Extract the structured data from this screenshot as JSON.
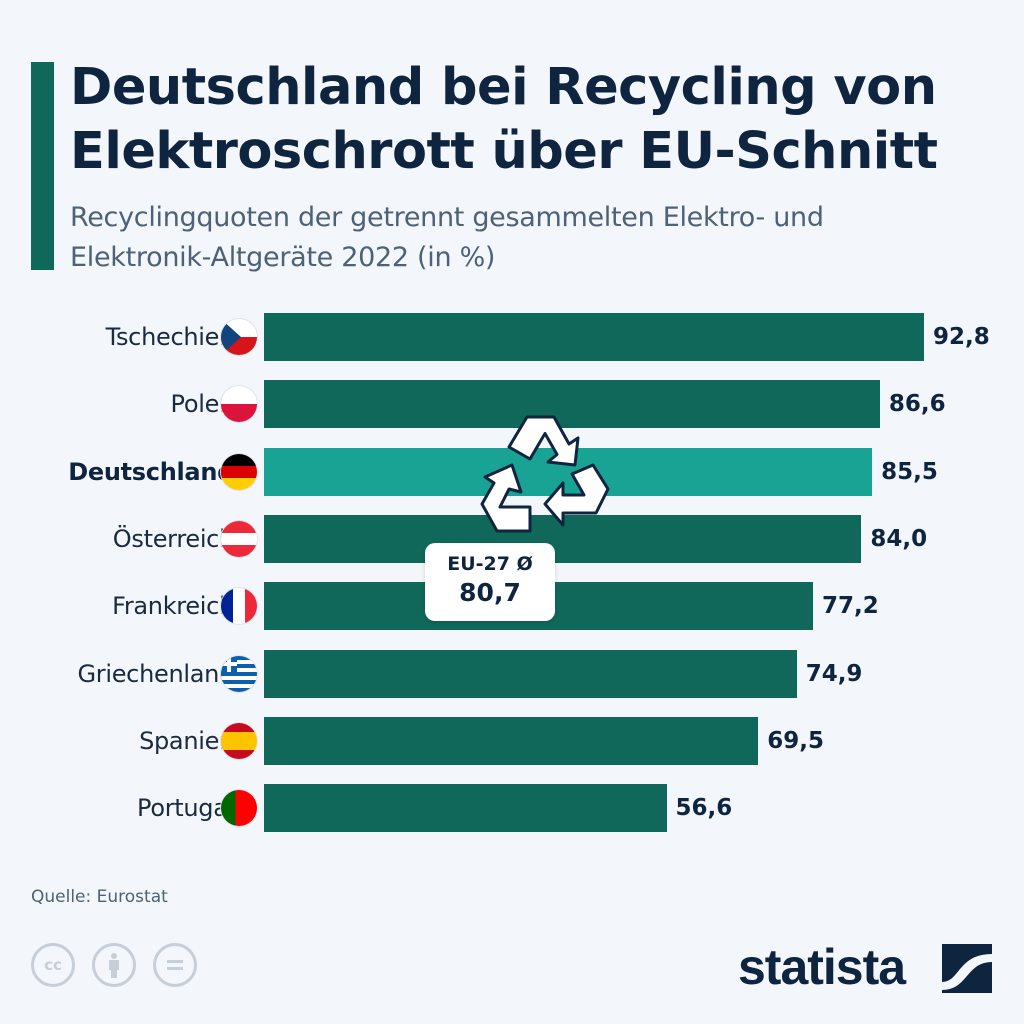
{
  "header": {
    "title": "Deutschland bei Recycling von Elektroschrott über EU-Schnitt",
    "subtitle": "Recyclingquoten der getrennt gesammelten Elektro- und Elektronik-Altgeräte 2022 (in %)"
  },
  "colors": {
    "bar": "#10685a",
    "highlight_bar": "#19a394",
    "text": "#0f243f",
    "background": "#f3f6fa"
  },
  "chart_data": {
    "type": "bar",
    "orientation": "horizontal",
    "title": "Deutschland bei Recycling von Elektroschrott über EU-Schnitt",
    "subtitle": "Recyclingquoten der getrennt gesammelten Elektro- und Elektronik-Altgeräte 2022 (in %)",
    "xlabel": "",
    "ylabel": "",
    "xlim": [
      0,
      92.8
    ],
    "grid": false,
    "categories": [
      "Tschechien",
      "Polen",
      "Deutschland",
      "Österreich",
      "Frankreich",
      "Griechenland",
      "Spanien",
      "Portugal"
    ],
    "values": [
      92.8,
      86.6,
      85.5,
      84.0,
      77.2,
      74.9,
      69.5,
      56.6
    ],
    "value_labels": [
      "92,8",
      "86,6",
      "85,5",
      "84,0",
      "77,2",
      "74,9",
      "69,5",
      "56,6"
    ],
    "flags": [
      "flag-czechia-icon",
      "flag-poland-icon",
      "flag-germany-icon",
      "flag-austria-icon",
      "flag-france-icon",
      "flag-greece-icon",
      "flag-spain-icon",
      "flag-portugal-icon"
    ],
    "highlight": "Deutschland",
    "annotation": {
      "label": "EU-27 Ø",
      "value": 80.7,
      "value_label": "80,7"
    }
  },
  "decor": {
    "icon": "recycle-icon"
  },
  "footer": {
    "source": "Quelle: Eurostat",
    "license_icons": [
      "cc-icon",
      "attribution-icon",
      "no-derivatives-icon"
    ],
    "cc_text": "cc",
    "brand": "statista"
  }
}
